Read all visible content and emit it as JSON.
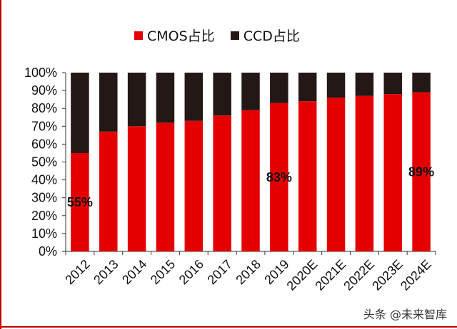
{
  "legend": {
    "cmos_label": "CMOS占比",
    "ccd_label": "CCD占比"
  },
  "colors": {
    "cmos": "#e50000",
    "ccd": "#231815",
    "axis": "#333333",
    "accent_rule": "#c40000"
  },
  "watermark": "头条 @未来智库",
  "chart_data": {
    "type": "bar",
    "stacked": true,
    "categories": [
      "2012",
      "2013",
      "2014",
      "2015",
      "2016",
      "2017",
      "2018",
      "2019",
      "2020E",
      "2021E",
      "2022E",
      "2023E",
      "2024E"
    ],
    "series": [
      {
        "name": "CMOS占比",
        "values": [
          55,
          67,
          70,
          72,
          73,
          76,
          79,
          83,
          84,
          86,
          87,
          88,
          89
        ]
      },
      {
        "name": "CCD占比",
        "values": [
          45,
          33,
          30,
          28,
          27,
          24,
          21,
          17,
          16,
          14,
          13,
          12,
          11
        ]
      }
    ],
    "data_labels": [
      {
        "category": "2012",
        "text": "55%"
      },
      {
        "category": "2019",
        "text": "83%"
      },
      {
        "category": "2024E",
        "text": "89%"
      }
    ],
    "yticks": [
      "0%",
      "10%",
      "20%",
      "30%",
      "40%",
      "50%",
      "60%",
      "70%",
      "80%",
      "90%",
      "100%"
    ],
    "ylim": [
      0,
      100
    ],
    "grid": false,
    "legend_position": "top",
    "title": "",
    "xlabel": "",
    "ylabel": ""
  }
}
